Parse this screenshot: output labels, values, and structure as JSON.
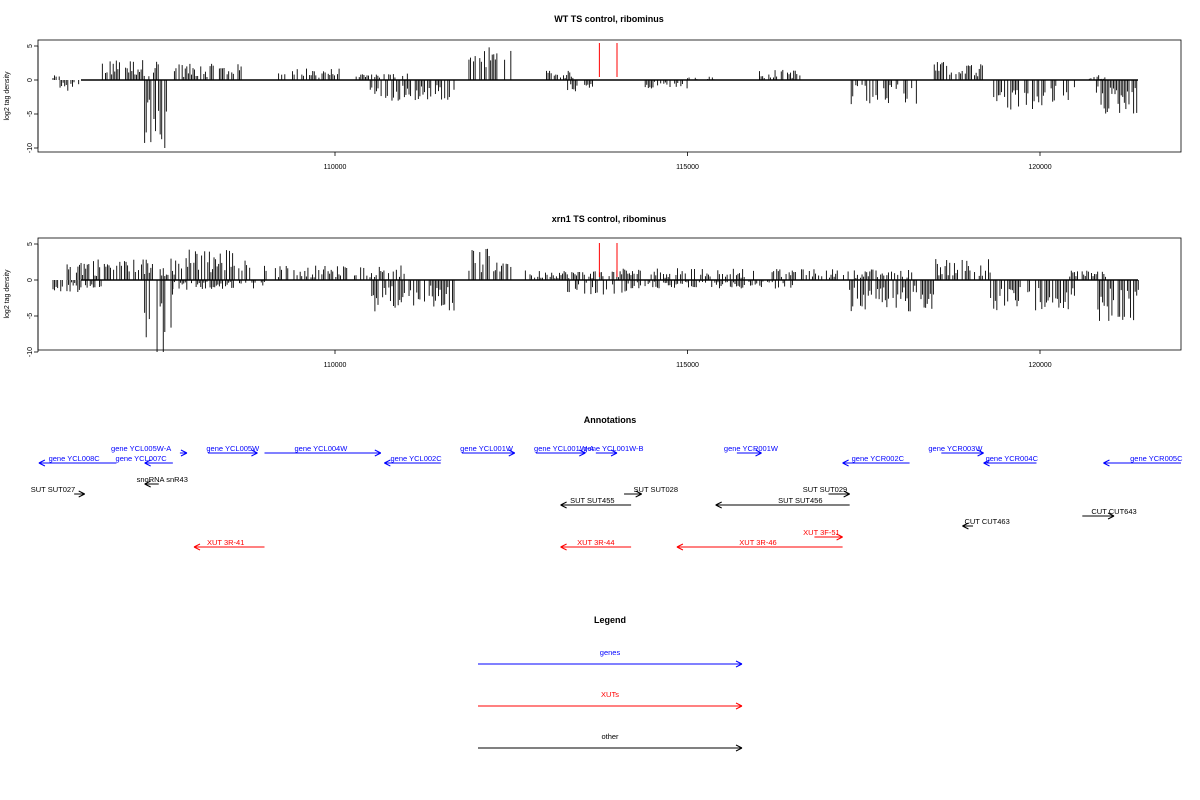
{
  "colors": {
    "gene": "#0000ff",
    "xut": "#ff0000",
    "other": "#000000",
    "marker": "#ff0000",
    "axis": "#000000"
  },
  "chart_data": [
    {
      "type": "bar",
      "title": "WT TS control, ribominus",
      "ylabel": "log2 tag density",
      "xlim": [
        105800,
        122000
      ],
      "ylim": [
        -10,
        5
      ],
      "y_ticks": [
        5,
        0,
        -5,
        -10
      ],
      "x_ticks": [
        110000,
        115000,
        120000
      ],
      "x_tick_labels": [
        "110000",
        "115000",
        "120000"
      ],
      "markers_x": [
        113750,
        114000
      ],
      "series": [
        {
          "strand": "plus",
          "regions": [
            {
              "start": 106000,
              "end": 106100,
              "mean": 0.4
            },
            {
              "start": 106700,
              "end": 107500,
              "mean": 1.8
            },
            {
              "start": 107700,
              "end": 108700,
              "mean": 1.4
            },
            {
              "start": 109200,
              "end": 110100,
              "mean": 1.0
            },
            {
              "start": 110300,
              "end": 111100,
              "mean": 0.6
            },
            {
              "start": 111900,
              "end": 112500,
              "mean": 3.0
            },
            {
              "start": 113000,
              "end": 113400,
              "mean": 0.8
            },
            {
              "start": 115000,
              "end": 115400,
              "mean": 0.3
            },
            {
              "start": 116000,
              "end": 116600,
              "mean": 0.9
            },
            {
              "start": 118500,
              "end": 119200,
              "mean": 1.6
            },
            {
              "start": 120700,
              "end": 121000,
              "mean": 0.5
            }
          ]
        },
        {
          "strand": "minus",
          "regions": [
            {
              "start": 106100,
              "end": 106400,
              "mean": -1.0
            },
            {
              "start": 107300,
              "end": 107700,
              "mean": -6.5
            },
            {
              "start": 110500,
              "end": 111700,
              "mean": -1.8
            },
            {
              "start": 113300,
              "end": 113700,
              "mean": -1.0
            },
            {
              "start": 114400,
              "end": 115000,
              "mean": -0.8
            },
            {
              "start": 117300,
              "end": 118300,
              "mean": -2.2
            },
            {
              "start": 119300,
              "end": 120500,
              "mean": -2.6
            },
            {
              "start": 120800,
              "end": 121400,
              "mean": -3.0
            }
          ]
        }
      ]
    },
    {
      "type": "bar",
      "title": "xrn1 TS control, ribominus",
      "ylabel": "log2 tag density",
      "xlim": [
        105800,
        122000
      ],
      "ylim": [
        -10,
        5
      ],
      "y_ticks": [
        5,
        0,
        -5,
        -10
      ],
      "x_ticks": [
        110000,
        115000,
        120000
      ],
      "x_tick_labels": [
        "110000",
        "115000",
        "120000"
      ],
      "markers_x": [
        113750,
        114000
      ],
      "series": [
        {
          "strand": "plus",
          "regions": [
            {
              "start": 106200,
              "end": 107800,
              "mean": 1.8
            },
            {
              "start": 107800,
              "end": 108800,
              "mean": 2.6
            },
            {
              "start": 109000,
              "end": 111000,
              "mean": 1.2
            },
            {
              "start": 111900,
              "end": 112500,
              "mean": 2.6
            },
            {
              "start": 112700,
              "end": 114000,
              "mean": 0.8
            },
            {
              "start": 114000,
              "end": 116000,
              "mean": 1.0
            },
            {
              "start": 116200,
              "end": 118200,
              "mean": 0.9
            },
            {
              "start": 118500,
              "end": 119300,
              "mean": 1.8
            },
            {
              "start": 120400,
              "end": 121000,
              "mean": 0.8
            }
          ]
        },
        {
          "strand": "minus",
          "regions": [
            {
              "start": 106000,
              "end": 106700,
              "mean": -1.0
            },
            {
              "start": 107300,
              "end": 107700,
              "mean": -6.0
            },
            {
              "start": 107700,
              "end": 109000,
              "mean": -0.8
            },
            {
              "start": 110500,
              "end": 111700,
              "mean": -2.6
            },
            {
              "start": 113300,
              "end": 114200,
              "mean": -1.2
            },
            {
              "start": 114200,
              "end": 116500,
              "mean": -0.7
            },
            {
              "start": 117300,
              "end": 118500,
              "mean": -2.6
            },
            {
              "start": 119300,
              "end": 120500,
              "mean": -2.6
            },
            {
              "start": 120800,
              "end": 121400,
              "mean": -3.4
            }
          ]
        }
      ]
    }
  ],
  "annotations": {
    "title": "Annotations",
    "rows": [
      {
        "row": 1,
        "items": [
          {
            "label": "gene YCL005W-A",
            "class": "gene",
            "start": 107800,
            "end": 107900,
            "dir": "+",
            "label_x": 107250
          },
          {
            "label": "gene YCL005W",
            "class": "gene",
            "start": 108200,
            "end": 108900,
            "dir": "+",
            "label_x": 108550
          },
          {
            "label": "gene YCL004W",
            "class": "gene",
            "start": 109000,
            "end": 110650,
            "dir": "+",
            "label_x": 109800
          },
          {
            "label": "gene YCL001W",
            "class": "gene",
            "start": 111800,
            "end": 112550,
            "dir": "+",
            "label_x": 112150
          },
          {
            "label": "gene YCL001W-A",
            "class": "gene",
            "start": 112850,
            "end": 113550,
            "dir": "+",
            "label_x": 113250
          },
          {
            "label": "gene YCL001W-B",
            "class": "gene",
            "start": 113700,
            "end": 114000,
            "dir": "+",
            "label_x": 113950
          },
          {
            "label": "gene YCR001W",
            "class": "gene",
            "start": 115700,
            "end": 116050,
            "dir": "+",
            "label_x": 115900
          },
          {
            "label": "gene YCR003W",
            "class": "gene",
            "start": 118600,
            "end": 119200,
            "dir": "+",
            "label_x": 118800
          }
        ]
      },
      {
        "row": 2,
        "items": [
          {
            "label": "gene YCL008C",
            "class": "gene",
            "start": 105800,
            "end": 106900,
            "dir": "-",
            "label_x": 106300
          },
          {
            "label": "gene YCL007C",
            "class": "gene",
            "start": 107300,
            "end": 107700,
            "dir": "-",
            "label_x": 107250
          },
          {
            "label": "gene YCL002C",
            "class": "gene",
            "start": 110700,
            "end": 111500,
            "dir": "-",
            "label_x": 111150
          },
          {
            "label": "gene YCR002C",
            "class": "gene",
            "start": 117200,
            "end": 118150,
            "dir": "-",
            "label_x": 117700
          },
          {
            "label": "gene YCR004C",
            "class": "gene",
            "start": 119200,
            "end": 119950,
            "dir": "-",
            "label_x": 119600
          },
          {
            "label": "gene YCR005C",
            "class": "gene",
            "start": 120900,
            "end": 122000,
            "dir": "-",
            "label_x": 121650
          }
        ]
      },
      {
        "row": 3,
        "items": [
          {
            "label": "snoRNA snR43",
            "class": "other",
            "start": 107300,
            "end": 107500,
            "dir": "-",
            "label_x": 107550
          }
        ]
      },
      {
        "row": 4,
        "items": [
          {
            "label": "SUT SUT027",
            "class": "other",
            "start": 106300,
            "end": 106450,
            "dir": "+",
            "label_x": 106000
          },
          {
            "label": "SUT SUT028",
            "class": "other",
            "start": 114100,
            "end": 114350,
            "dir": "+",
            "label_x": 114550
          },
          {
            "label": "SUT SUT029",
            "class": "other",
            "start": 117000,
            "end": 117300,
            "dir": "+",
            "label_x": 116950
          }
        ]
      },
      {
        "row": 5,
        "items": [
          {
            "label": "SUT SUT455",
            "class": "other",
            "start": 113200,
            "end": 114200,
            "dir": "-",
            "label_x": 113650
          },
          {
            "label": "SUT SUT456",
            "class": "other",
            "start": 115400,
            "end": 117300,
            "dir": "-",
            "label_x": 116600
          }
        ]
      },
      {
        "row": 6,
        "items": [
          {
            "label": "CUT CUT643",
            "class": "other",
            "start": 120600,
            "end": 121050,
            "dir": "+",
            "label_x": 121050
          }
        ]
      },
      {
        "row": 7,
        "items": [
          {
            "label": "CUT CUT463",
            "class": "other",
            "start": 118900,
            "end": 119050,
            "dir": "-",
            "label_x": 119250
          }
        ]
      },
      {
        "row": 8,
        "items": [
          {
            "label": "XUT 3F-51",
            "class": "xut",
            "start": 116800,
            "end": 117200,
            "dir": "+",
            "label_x": 116900
          }
        ]
      },
      {
        "row": 9,
        "items": [
          {
            "label": "XUT 3R-41",
            "class": "xut",
            "start": 108000,
            "end": 109000,
            "dir": "-",
            "label_x": 108450
          },
          {
            "label": "XUT 3R-44",
            "class": "xut",
            "start": 113200,
            "end": 114200,
            "dir": "-",
            "label_x": 113700
          },
          {
            "label": "XUT 3R-46",
            "class": "xut",
            "start": 114850,
            "end": 117200,
            "dir": "-",
            "label_x": 116000
          }
        ]
      }
    ]
  },
  "legend": {
    "title": "Legend",
    "entries": [
      {
        "label": "genes",
        "class": "gene"
      },
      {
        "label": "XUTs",
        "class": "xut"
      },
      {
        "label": "other",
        "class": "other"
      }
    ]
  }
}
